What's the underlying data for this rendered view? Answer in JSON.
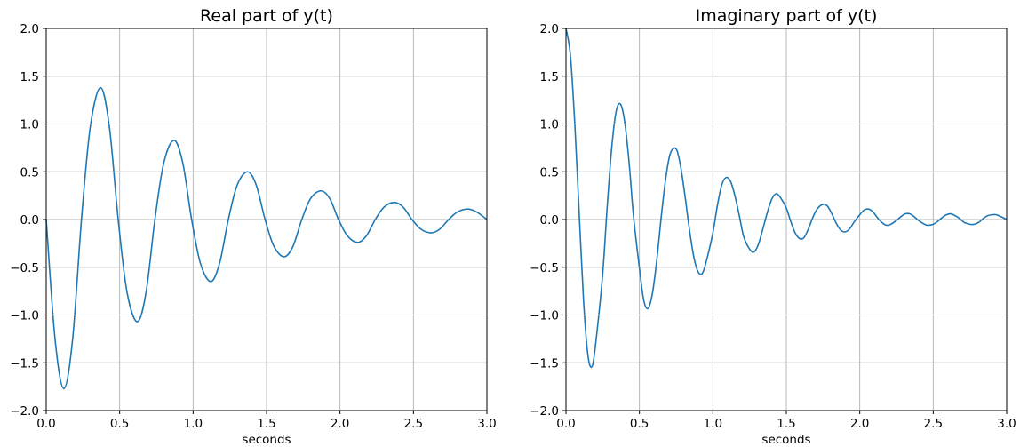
{
  "chart_data": [
    {
      "type": "line",
      "title": "Real part of y(t)",
      "xlabel": "seconds",
      "ylabel": "",
      "xlim": [
        0,
        3.0
      ],
      "ylim": [
        -2.0,
        2.0
      ],
      "x_ticks": [
        "0.0",
        "0.5",
        "1.0",
        "1.5",
        "2.0",
        "2.5",
        "3.0"
      ],
      "y_ticks": [
        "2.0",
        "1.5",
        "1.0",
        "0.5",
        "0.0",
        "−0.5",
        "−1.0",
        "−1.5",
        "−2.0"
      ],
      "grid": true,
      "color": "#1f77b4",
      "series": [
        {
          "x": [
            0.0,
            0.06,
            0.12,
            0.18,
            0.24,
            0.3,
            0.37,
            0.43,
            0.49,
            0.55,
            0.62,
            0.68,
            0.74,
            0.8,
            0.87,
            0.93,
            0.99,
            1.05,
            1.12,
            1.18,
            1.24,
            1.3,
            1.37,
            1.43,
            1.49,
            1.55,
            1.62,
            1.68,
            1.74,
            1.8,
            1.87,
            1.93,
            1.99,
            2.05,
            2.12,
            2.18,
            2.24,
            2.3,
            2.37,
            2.43,
            2.49,
            2.55,
            2.62,
            2.68,
            2.74,
            2.8,
            2.87,
            2.93,
            3.0
          ],
          "y": [
            0.0,
            -1.25,
            -1.77,
            -1.25,
            0.0,
            0.97,
            1.38,
            0.97,
            0.0,
            -0.76,
            -1.07,
            -0.76,
            0.0,
            0.59,
            0.83,
            0.59,
            0.0,
            -0.46,
            -0.65,
            -0.46,
            0.0,
            0.36,
            0.5,
            0.36,
            0.0,
            -0.28,
            -0.39,
            -0.28,
            0.0,
            0.22,
            0.3,
            0.22,
            0.0,
            -0.17,
            -0.24,
            -0.17,
            0.0,
            0.13,
            0.18,
            0.13,
            0.0,
            -0.1,
            -0.14,
            -0.1,
            0.0,
            0.08,
            0.11,
            0.08,
            0.0
          ]
        }
      ]
    },
    {
      "type": "line",
      "title": "Imaginary part of y(t)",
      "xlabel": "seconds",
      "ylabel": "",
      "xlim": [
        0,
        3.0
      ],
      "ylim": [
        -2.0,
        2.0
      ],
      "x_ticks": [
        "0.0",
        "0.5",
        "1.0",
        "1.5",
        "2.0",
        "2.5",
        "3.0"
      ],
      "y_ticks": [
        "2.0",
        "1.5",
        "1.0",
        "0.5",
        "0.0",
        "−0.5",
        "−1.0",
        "−1.5",
        "−2.0"
      ],
      "grid": true,
      "color": "#1f77b4",
      "series": [
        {
          "x": [
            0.0,
            0.03,
            0.06,
            0.09,
            0.12,
            0.15,
            0.18,
            0.21,
            0.25,
            0.28,
            0.31,
            0.34,
            0.37,
            0.4,
            0.43,
            0.46,
            0.5,
            0.53,
            0.56,
            0.59,
            0.62,
            0.65,
            0.68,
            0.71,
            0.75,
            0.78,
            0.81,
            0.84,
            0.87,
            0.9,
            0.93,
            0.96,
            1.0,
            1.03,
            1.06,
            1.09,
            1.12,
            1.15,
            1.18,
            1.21,
            1.25,
            1.28,
            1.31,
            1.34,
            1.37,
            1.4,
            1.43,
            1.46,
            1.5,
            1.53,
            1.56,
            1.59,
            1.62,
            1.65,
            1.68,
            1.71,
            1.75,
            1.78,
            1.81,
            1.84,
            1.87,
            1.9,
            1.93,
            1.96,
            2.0,
            2.03,
            2.06,
            2.09,
            2.12,
            2.15,
            2.18,
            2.21,
            2.25,
            2.28,
            2.31,
            2.34,
            2.37,
            2.4,
            2.43,
            2.46,
            2.5,
            2.53,
            2.56,
            2.59,
            2.62,
            2.65,
            2.68,
            2.71,
            2.75,
            2.78,
            2.81,
            2.84,
            2.87,
            2.9,
            2.93,
            2.96,
            3.0
          ],
          "y": [
            2.0,
            1.72,
            1.0,
            0.06,
            -0.86,
            -1.43,
            -1.53,
            -1.19,
            -0.57,
            0.12,
            0.73,
            1.12,
            1.21,
            1.02,
            0.59,
            0.03,
            -0.51,
            -0.85,
            -0.93,
            -0.76,
            -0.4,
            0.05,
            0.44,
            0.69,
            0.74,
            0.56,
            0.25,
            -0.1,
            -0.39,
            -0.55,
            -0.56,
            -0.41,
            -0.14,
            0.14,
            0.36,
            0.44,
            0.4,
            0.25,
            0.04,
            -0.18,
            -0.31,
            -0.34,
            -0.26,
            -0.1,
            0.07,
            0.21,
            0.27,
            0.23,
            0.12,
            -0.02,
            -0.14,
            -0.2,
            -0.19,
            -0.1,
            0.02,
            0.11,
            0.16,
            0.14,
            0.06,
            -0.04,
            -0.11,
            -0.13,
            -0.1,
            -0.03,
            0.05,
            0.1,
            0.11,
            0.08,
            0.02,
            -0.03,
            -0.06,
            -0.05,
            -0.01,
            0.03,
            0.06,
            0.06,
            0.03,
            -0.01,
            -0.04,
            -0.06,
            -0.05,
            -0.02,
            0.02,
            0.05,
            0.06,
            0.04,
            0.01,
            -0.03,
            -0.05,
            -0.05,
            -0.03,
            0.01,
            0.04,
            0.05,
            0.05,
            0.03,
            0.0
          ]
        }
      ]
    }
  ]
}
